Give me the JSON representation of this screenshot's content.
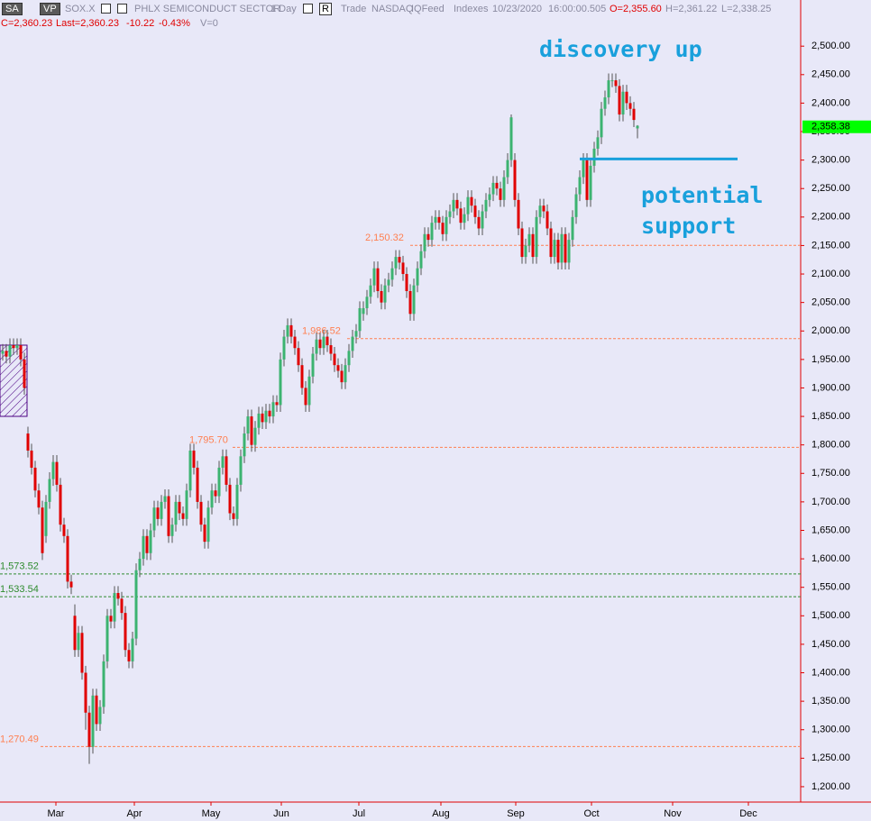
{
  "header": {
    "buttons": [
      "SA",
      "VP"
    ],
    "symbol": "SOX.X",
    "name": "PHLX SEMICONDUCT SECTOR",
    "interval": "1 Day",
    "range_button": "R",
    "settings": [
      "Trade",
      "NASDAQ",
      "IQFeed",
      "Indexes"
    ],
    "date": "10/23/2020",
    "time": "16:00:00.505",
    "open": "O=2,355.60",
    "high": "H=2,361.22",
    "low": "L=2,338.25",
    "close": "C=2,360.23",
    "last": "Last=2,360.23",
    "change": "-10.22",
    "change_pct": "-0.43%",
    "volume": "V=0"
  },
  "chart_data": {
    "type": "candlestick",
    "up_color": "#3cb371",
    "down_color": "#e00000",
    "open": [
      1960,
      1965,
      1955,
      1975,
      1970,
      1975,
      1950,
      1820,
      1790,
      1760,
      1720,
      1690,
      1640,
      1700,
      1740,
      1770,
      1730,
      1660,
      1640,
      1560,
      1500,
      1440,
      1470,
      1400,
      1330,
      1270,
      1360,
      1310,
      1340,
      1420,
      1500,
      1490,
      1540,
      1530,
      1505,
      1440,
      1420,
      1460,
      1580,
      1600,
      1640,
      1610,
      1650,
      1690,
      1670,
      1700,
      1710,
      1640,
      1660,
      1700,
      1680,
      1670,
      1720,
      1790,
      1760,
      1700,
      1660,
      1630,
      1690,
      1720,
      1710,
      1760,
      1780,
      1730,
      1680,
      1670,
      1730,
      1780,
      1820,
      1850,
      1800,
      1830,
      1855,
      1840,
      1860,
      1850,
      1875,
      1870,
      1950,
      1990,
      2010,
      1990,
      1970,
      1940,
      1900,
      1870,
      1920,
      1960,
      1985,
      1970,
      1990,
      1975,
      1960,
      1940,
      1930,
      1910,
      1940,
      1965,
      1990,
      2000,
      2030,
      2040,
      2060,
      2080,
      2110,
      2070,
      2050,
      2080,
      2090,
      2110,
      2130,
      2120,
      2100,
      2070,
      2030,
      2080,
      2110,
      2140,
      2170,
      2160,
      2190,
      2200,
      2190,
      2170,
      2200,
      2210,
      2230,
      2215,
      2190,
      2205,
      2235,
      2220,
      2200,
      2180,
      2210,
      2230,
      2240,
      2260,
      2250,
      2230,
      2270,
      2300,
      2300,
      2230,
      2180,
      2130,
      2150,
      2170,
      2130,
      2200,
      2220,
      2210,
      2180,
      2130,
      2160,
      2120,
      2170,
      2120,
      2160,
      2200,
      2240,
      2270,
      2300,
      2230,
      2290,
      2320,
      2340,
      2390,
      2410,
      2440,
      2440,
      2430,
      2380,
      2420,
      2400,
      2390,
      2355.6
    ],
    "high": [
      1977,
      1977,
      1987,
      1987,
      1987,
      1987,
      1962,
      1832,
      1802,
      1772,
      1732,
      1702,
      1712,
      1752,
      1782,
      1782,
      1742,
      1672,
      1652,
      1572,
      1520,
      1482,
      1482,
      1412,
      1342,
      1372,
      1372,
      1352,
      1432,
      1512,
      1512,
      1552,
      1552,
      1542,
      1517,
      1452,
      1472,
      1592,
      1612,
      1652,
      1652,
      1662,
      1702,
      1702,
      1712,
      1722,
      1722,
      1672,
      1712,
      1712,
      1692,
      1732,
      1802,
      1802,
      1772,
      1712,
      1672,
      1702,
      1732,
      1732,
      1772,
      1792,
      1792,
      1742,
      1692,
      1742,
      1792,
      1832,
      1862,
      1862,
      1842,
      1867,
      1867,
      1872,
      1872,
      1887,
      1887,
      1962,
      2002,
      2022,
      2022,
      2002,
      1982,
      1952,
      1912,
      1932,
      1972,
      1997,
      1997,
      2002,
      2002,
      1987,
      1972,
      1952,
      1942,
      1952,
      1977,
      2002,
      2012,
      2052,
      2052,
      2072,
      2092,
      2122,
      2122,
      2082,
      2092,
      2102,
      2122,
      2142,
      2142,
      2132,
      2112,
      2082,
      2092,
      2122,
      2152,
      2182,
      2182,
      2202,
      2212,
      2212,
      2202,
      2212,
      2222,
      2242,
      2242,
      2227,
      2217,
      2247,
      2247,
      2232,
      2212,
      2222,
      2242,
      2252,
      2272,
      2272,
      2262,
      2282,
      2312,
      2380,
      2312,
      2242,
      2192,
      2162,
      2182,
      2182,
      2212,
      2232,
      2232,
      2222,
      2192,
      2172,
      2172,
      2182,
      2182,
      2172,
      2212,
      2252,
      2282,
      2312,
      2312,
      2302,
      2332,
      2352,
      2402,
      2422,
      2452,
      2452,
      2452,
      2442,
      2432,
      2432,
      2412,
      2402,
      2361.22
    ],
    "low": [
      1948,
      1943,
      1943,
      1958,
      1958,
      1938,
      1888,
      1778,
      1748,
      1708,
      1678,
      1598,
      1628,
      1688,
      1728,
      1718,
      1648,
      1628,
      1548,
      1538,
      1428,
      1428,
      1388,
      1300,
      1240,
      1258,
      1298,
      1298,
      1328,
      1408,
      1478,
      1478,
      1518,
      1493,
      1428,
      1408,
      1408,
      1448,
      1568,
      1588,
      1598,
      1598,
      1638,
      1658,
      1658,
      1688,
      1628,
      1628,
      1648,
      1668,
      1658,
      1658,
      1708,
      1748,
      1688,
      1648,
      1618,
      1618,
      1678,
      1698,
      1698,
      1748,
      1718,
      1668,
      1658,
      1658,
      1718,
      1768,
      1808,
      1788,
      1788,
      1818,
      1828,
      1828,
      1838,
      1838,
      1858,
      1858,
      1938,
      1978,
      1978,
      1958,
      1928,
      1888,
      1858,
      1858,
      1908,
      1948,
      1958,
      1958,
      1963,
      1948,
      1928,
      1918,
      1898,
      1898,
      1928,
      1953,
      1978,
      1988,
      2018,
      2028,
      2048,
      2068,
      2058,
      2038,
      2038,
      2068,
      2078,
      2098,
      2108,
      2088,
      2058,
      2018,
      2018,
      2068,
      2098,
      2128,
      2148,
      2148,
      2178,
      2178,
      2158,
      2158,
      2188,
      2198,
      2203,
      2178,
      2178,
      2193,
      2208,
      2188,
      2168,
      2168,
      2198,
      2218,
      2228,
      2238,
      2218,
      2218,
      2258,
      2288,
      2218,
      2168,
      2118,
      2118,
      2138,
      2118,
      2118,
      2188,
      2198,
      2168,
      2118,
      2118,
      2108,
      2108,
      2108,
      2108,
      2148,
      2188,
      2228,
      2258,
      2218,
      2218,
      2278,
      2308,
      2328,
      2378,
      2398,
      2428,
      2418,
      2368,
      2368,
      2388,
      2378,
      2358,
      2338.25
    ],
    "close": [
      1965,
      1955,
      1975,
      1970,
      1975,
      1950,
      1900,
      1790,
      1760,
      1720,
      1690,
      1610,
      1700,
      1740,
      1770,
      1730,
      1660,
      1640,
      1560,
      1550,
      1440,
      1470,
      1400,
      1330,
      1270,
      1360,
      1310,
      1340,
      1420,
      1500,
      1490,
      1540,
      1530,
      1505,
      1440,
      1420,
      1460,
      1580,
      1600,
      1640,
      1610,
      1650,
      1690,
      1670,
      1700,
      1710,
      1640,
      1660,
      1700,
      1680,
      1670,
      1720,
      1790,
      1760,
      1700,
      1660,
      1630,
      1690,
      1720,
      1710,
      1760,
      1780,
      1730,
      1680,
      1670,
      1730,
      1780,
      1820,
      1850,
      1800,
      1830,
      1855,
      1840,
      1860,
      1850,
      1875,
      1870,
      1950,
      1990,
      2010,
      1990,
      1970,
      1940,
      1900,
      1870,
      1920,
      1960,
      1985,
      1970,
      1990,
      1975,
      1960,
      1940,
      1930,
      1910,
      1940,
      1965,
      1990,
      2000,
      2040,
      2040,
      2060,
      2080,
      2110,
      2070,
      2050,
      2080,
      2090,
      2110,
      2130,
      2120,
      2100,
      2070,
      2030,
      2080,
      2110,
      2140,
      2170,
      2160,
      2190,
      2200,
      2190,
      2170,
      2200,
      2210,
      2230,
      2215,
      2190,
      2205,
      2235,
      2220,
      2200,
      2180,
      2210,
      2230,
      2240,
      2260,
      2250,
      2230,
      2270,
      2300,
      2375,
      2230,
      2180,
      2130,
      2150,
      2170,
      2130,
      2200,
      2220,
      2210,
      2180,
      2130,
      2160,
      2120,
      2170,
      2120,
      2160,
      2200,
      2240,
      2270,
      2300,
      2230,
      2290,
      2320,
      2340,
      2390,
      2410,
      2440,
      2440,
      2430,
      2380,
      2420,
      2400,
      2390,
      2370.45,
      2360.23
    ],
    "xlim": [
      -0.75,
      221.25
    ],
    "xticks": [
      {
        "value": 14.75,
        "label": "Mar"
      },
      {
        "value": 36.5,
        "label": "Apr"
      },
      {
        "value": 57.75,
        "label": "May"
      },
      {
        "value": 77.25,
        "label": "Jun"
      },
      {
        "value": 98.75,
        "label": "Jul"
      },
      {
        "value": 121.5,
        "label": "Aug"
      },
      {
        "value": 142.25,
        "label": "Sep"
      },
      {
        "value": 163.25,
        "label": "Oct"
      },
      {
        "value": 185.75,
        "label": "Nov"
      },
      {
        "value": 206.75,
        "label": "Dec"
      }
    ],
    "ylim": [
      1173,
      2581
    ],
    "yticks": [
      {
        "value": 1200,
        "label": "1,200.00"
      },
      {
        "value": 1250,
        "label": "1,250.00"
      },
      {
        "value": 1300,
        "label": "1,300.00"
      },
      {
        "value": 1350,
        "label": "1,350.00"
      },
      {
        "value": 1400,
        "label": "1,400.00"
      },
      {
        "value": 1450,
        "label": "1,450.00"
      },
      {
        "value": 1500,
        "label": "1,500.00"
      },
      {
        "value": 1550,
        "label": "1,550.00"
      },
      {
        "value": 1600,
        "label": "1,600.00"
      },
      {
        "value": 1650,
        "label": "1,650.00"
      },
      {
        "value": 1700,
        "label": "1,700.00"
      },
      {
        "value": 1750,
        "label": "1,750.00"
      },
      {
        "value": 1800,
        "label": "1,800.00"
      },
      {
        "value": 1850,
        "label": "1,850.00"
      },
      {
        "value": 1900,
        "label": "1,900.00"
      },
      {
        "value": 1950,
        "label": "1,950.00"
      },
      {
        "value": 2000,
        "label": "2,000.00"
      },
      {
        "value": 2050,
        "label": "2,050.00"
      },
      {
        "value": 2100,
        "label": "2,100.00"
      },
      {
        "value": 2150,
        "label": "2,150.00"
      },
      {
        "value": 2200,
        "label": "2,200.00"
      },
      {
        "value": 2250,
        "label": "2,250.00"
      },
      {
        "value": 2300,
        "label": "2,300.00"
      },
      {
        "value": 2350,
        "label": "2,350.00"
      },
      {
        "value": 2400,
        "label": "2,400.00"
      },
      {
        "value": 2450,
        "label": "2,450.00"
      },
      {
        "value": 2500,
        "label": "2,500.00"
      }
    ],
    "levels": [
      {
        "value": 2150.32,
        "label": "2,150.32",
        "color": "#ff7f50"
      },
      {
        "value": 1986.52,
        "label": "1,986.52",
        "color": "#ff7f50"
      },
      {
        "value": 1795.7,
        "label": "1,795.70",
        "color": "#ff7f50"
      },
      {
        "value": 1573.52,
        "label": "1,573.52",
        "color": "#2e8b2e"
      },
      {
        "value": 1533.54,
        "label": "1,533.54",
        "color": "#2e8b2e"
      },
      {
        "value": 1270.49,
        "label": "1,270.49",
        "color": "#ff7f50"
      }
    ],
    "support_line": {
      "value": 2302,
      "color": "#19a0dc"
    },
    "price_tag": {
      "value": 2358.38,
      "label": "2,358.38",
      "color": "#00ff00"
    },
    "annotations": [
      "discovery up",
      "potential support"
    ]
  }
}
